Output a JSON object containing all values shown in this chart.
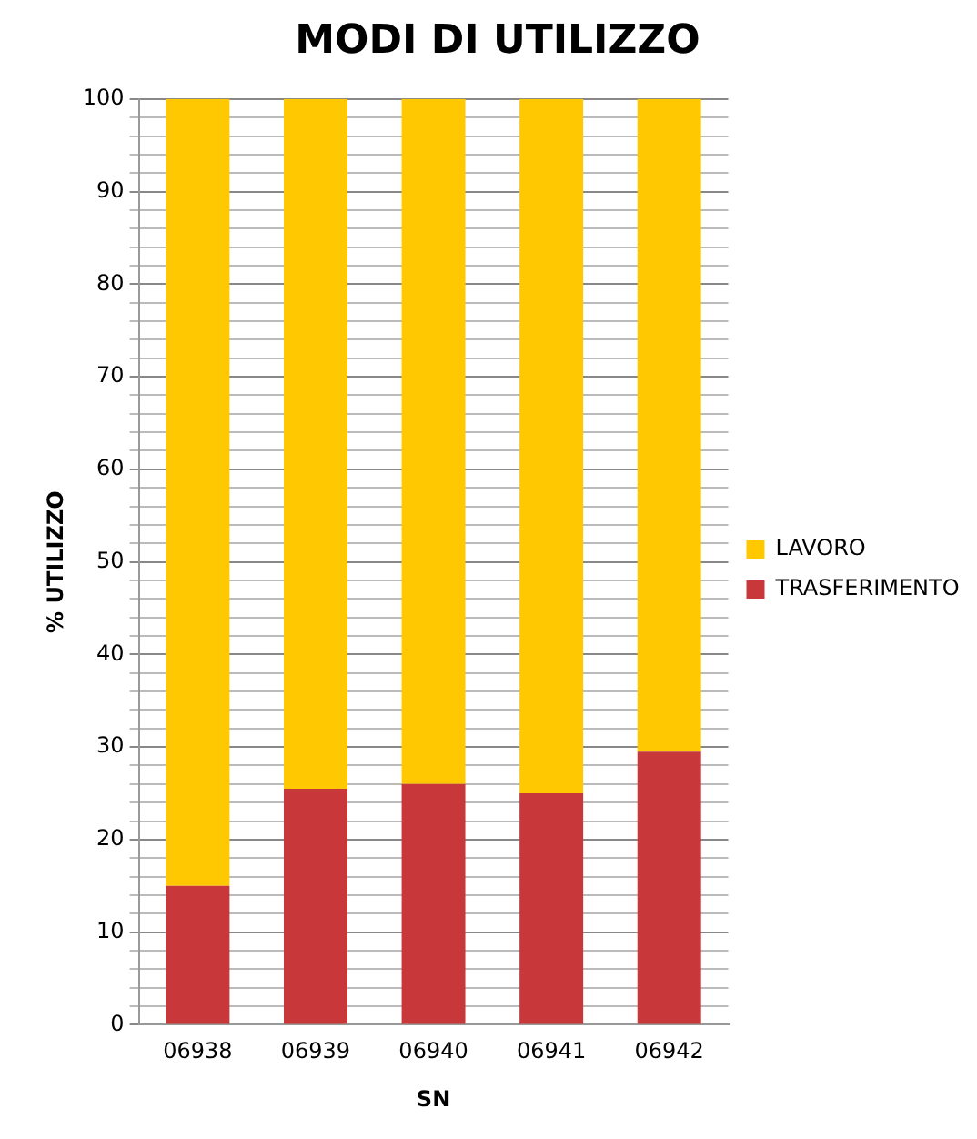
{
  "chart_data": {
    "type": "bar",
    "title": "MODI DI UTILIZZO",
    "xlabel": "SN",
    "ylabel": "% UTILIZZO",
    "categories": [
      "06938",
      "06939",
      "06940",
      "06941",
      "06942"
    ],
    "series": [
      {
        "name": "TRASFERIMENTO",
        "color": "#c8383a",
        "values": [
          15,
          25.5,
          26,
          25,
          29.5
        ]
      },
      {
        "name": "LAVORO",
        "color": "#ffc800",
        "values": [
          85,
          74.5,
          74,
          75,
          70.5
        ]
      }
    ],
    "stacked": true,
    "ylim": [
      0,
      100
    ],
    "yticks": [
      0,
      {
        "value": 2,
        "label": null
      },
      {
        "value": 4,
        "label": null
      },
      {
        "value": 6,
        "label": null
      },
      {
        "value": 8,
        "label": null
      },
      10,
      {
        "value": 12,
        "label": null
      },
      {
        "value": 14,
        "label": null
      },
      {
        "value": 16,
        "label": null
      },
      {
        "value": 18,
        "label": null
      },
      20,
      {
        "value": 22,
        "label": null
      },
      {
        "value": 24,
        "label": null
      },
      {
        "value": 26,
        "label": null
      },
      {
        "value": 28,
        "label": null
      },
      30,
      {
        "value": 32,
        "label": null
      },
      {
        "value": 34,
        "label": null
      },
      {
        "value": 36,
        "label": null
      },
      {
        "value": 38,
        "label": null
      },
      40,
      {
        "value": 42,
        "label": null
      },
      {
        "value": 44,
        "label": null
      },
      {
        "value": 46,
        "label": null
      },
      {
        "value": 48,
        "label": null
      },
      50,
      {
        "value": 52,
        "label": null
      },
      {
        "value": 54,
        "label": null
      },
      {
        "value": 56,
        "label": null
      },
      {
        "value": 58,
        "label": null
      },
      60,
      {
        "value": 62,
        "label": null
      },
      {
        "value": 64,
        "label": null
      },
      {
        "value": 66,
        "label": null
      },
      {
        "value": 68,
        "label": null
      },
      70,
      {
        "value": 72,
        "label": null
      },
      {
        "value": 74,
        "label": null
      },
      {
        "value": 76,
        "label": null
      },
      {
        "value": 78,
        "label": null
      },
      80,
      {
        "value": 82,
        "label": null
      },
      {
        "value": 84,
        "label": null
      },
      {
        "value": 86,
        "label": null
      },
      {
        "value": 88,
        "label": null
      },
      90,
      {
        "value": 92,
        "label": null
      },
      {
        "value": 94,
        "label": null
      },
      {
        "value": 96,
        "label": null
      },
      {
        "value": 98,
        "label": null
      },
      100
    ],
    "grid": "y",
    "legend": "right"
  }
}
